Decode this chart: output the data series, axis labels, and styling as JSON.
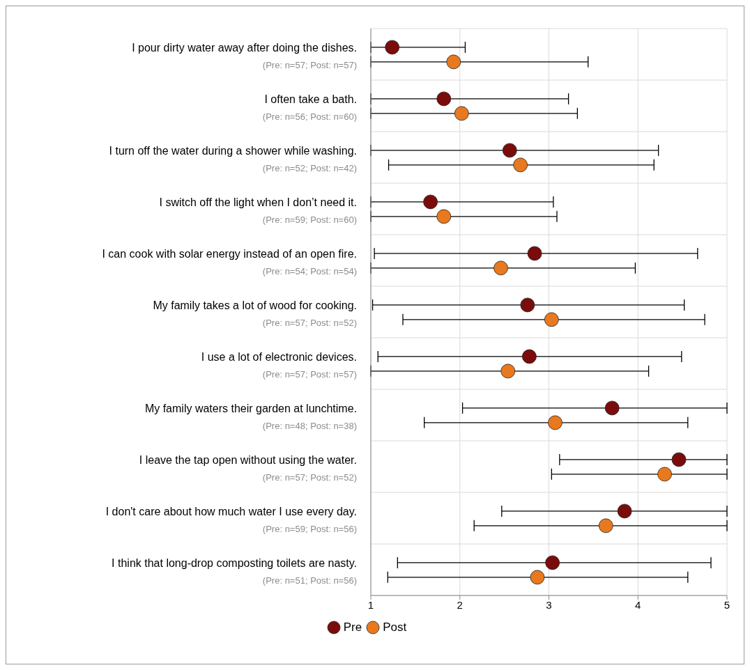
{
  "chart_data": {
    "type": "scatter",
    "orientation": "horizontal",
    "categories": [
      "I pour dirty water away after doing the dishes.\n(Pre: n=57; Post: n=57)",
      "I often take a bath.\n(Pre: n=56; Post: n=60)",
      "I turn off the water during a shower while washing.\n(Pre: n=52; Post: n=42)",
      "I switch off the light when I don’t need it.\n(Pre: n=59; Post: n=60)",
      "I can cook with solar energy instead of an open fire.\n(Pre: n=54; Post: n=54)",
      "My family takes a lot of wood for cooking.\n(Pre: n=57; Post: n=52)",
      "I use a lot of electronic devices.\n(Pre: n=57; Post: n=57)",
      "My family waters their garden at lunchtime.\n(Pre: n=48; Post: n=38)",
      "I leave the tap open without using the water.\n(Pre: n=57; Post: n=52)",
      "I don't care about how much water I use every day.\n(Pre: n=59; Post: n=56)",
      "I think that long-drop composting toilets are nasty.\n(Pre: n=51; Post: n=56)"
    ],
    "series": [
      {
        "name": "Pre",
        "color": "#7b0c0c",
        "values": [
          1.24,
          1.82,
          2.56,
          1.67,
          2.84,
          2.76,
          2.78,
          3.71,
          4.46,
          3.85,
          3.04
        ],
        "errors": [
          [
            1,
            2.06
          ],
          [
            1,
            3.22
          ],
          [
            1,
            4.23
          ],
          [
            1,
            3.05
          ],
          [
            1.04,
            4.67
          ],
          [
            1.02,
            4.52
          ],
          [
            1.08,
            4.49
          ],
          [
            2.03,
            5
          ],
          [
            3.12,
            5
          ],
          [
            2.47,
            5
          ],
          [
            1.3,
            4.82
          ]
        ]
      },
      {
        "name": "Post",
        "color": "#e8791e",
        "values": [
          1.93,
          2.02,
          2.68,
          1.82,
          2.46,
          3.03,
          2.54,
          3.07,
          4.3,
          3.64,
          2.87
        ],
        "errors": [
          [
            1,
            3.44
          ],
          [
            1,
            3.32
          ],
          [
            1.2,
            4.18
          ],
          [
            1,
            3.09
          ],
          [
            1,
            3.97
          ],
          [
            1.36,
            4.75
          ],
          [
            1,
            4.12
          ],
          [
            1.6,
            4.56
          ],
          [
            3.03,
            5
          ],
          [
            2.16,
            5
          ],
          [
            1.19,
            4.56
          ]
        ]
      }
    ],
    "xlim": [
      1,
      5
    ],
    "xticks": [
      1,
      2,
      3,
      4,
      5
    ],
    "grid": true,
    "legend": "bottom",
    "marker": "circle"
  }
}
